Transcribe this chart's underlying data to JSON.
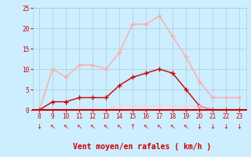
{
  "hours": [
    8,
    9,
    10,
    11,
    12,
    13,
    14,
    15,
    16,
    17,
    18,
    19,
    20,
    21,
    22,
    23
  ],
  "rafales": [
    0,
    10,
    8,
    11,
    11,
    10,
    14,
    21,
    21,
    23,
    18,
    13,
    7,
    3,
    3,
    3
  ],
  "vent_moyen": [
    0,
    2,
    2,
    3,
    3,
    3,
    6,
    8,
    9,
    10,
    9,
    5,
    1,
    0,
    0,
    0
  ],
  "vent_min": [
    0,
    0,
    0,
    0,
    0,
    0,
    1,
    1,
    1,
    1,
    1,
    1,
    1,
    0,
    0,
    0
  ],
  "color_rafales": "#ffaaaa",
  "color_vent_moyen": "#cc0000",
  "color_vent_min": "#ffcccc",
  "bg_color": "#cceeff",
  "grid_color": "#aacccc",
  "xlabel": "Vent moyen/en rafales ( km/h )",
  "xlabel_color": "#cc0000",
  "tick_color": "#cc0000",
  "ylim": [
    0,
    25
  ],
  "yticks": [
    0,
    5,
    10,
    15,
    20,
    25
  ],
  "xlim": [
    8,
    23
  ],
  "wind_dirs": [
    "↓",
    "↖",
    "↖",
    "↖",
    "↖",
    "↖",
    "↖",
    "↑",
    "↖",
    "↖",
    "↖",
    "↖",
    "↓",
    "↓",
    "↓",
    "↓"
  ]
}
